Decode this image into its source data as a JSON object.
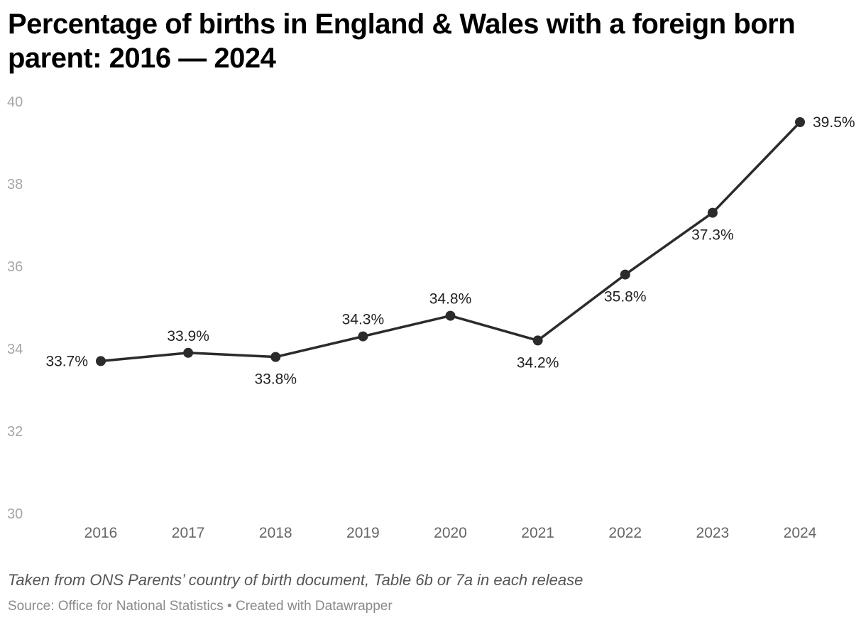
{
  "title": "Percentage of births in England & Wales with a foreign born parent: 2016 — 2024",
  "notes": "Taken from ONS Parents’ country of birth document, Table 6b or 7a in each release",
  "footer": "Source: Office for National Statistics • Created with Datawrapper",
  "chart_data": {
    "type": "line",
    "title": "Percentage of births in England & Wales with a foreign born parent: 2016 — 2024",
    "xlabel": "",
    "ylabel": "",
    "x": [
      "2016",
      "2017",
      "2018",
      "2019",
      "2020",
      "2021",
      "2022",
      "2023",
      "2024"
    ],
    "series": [
      {
        "values": [
          33.7,
          33.9,
          33.8,
          34.3,
          34.8,
          34.2,
          35.8,
          37.3,
          39.5
        ]
      }
    ],
    "data_labels": [
      "33.7%",
      "33.9%",
      "33.8%",
      "34.3%",
      "34.8%",
      "34.2%",
      "35.8%",
      "37.3%",
      "39.5%"
    ],
    "label_placement": [
      "left",
      "above",
      "below",
      "above",
      "above",
      "below",
      "below",
      "below",
      "right"
    ],
    "ylim": [
      30,
      40
    ],
    "yticks": [
      30,
      32,
      34,
      36,
      38,
      40
    ],
    "grid": false,
    "legend": "none",
    "colors": {
      "line": "#2b2b2b",
      "marker": "#2b2b2b"
    }
  }
}
